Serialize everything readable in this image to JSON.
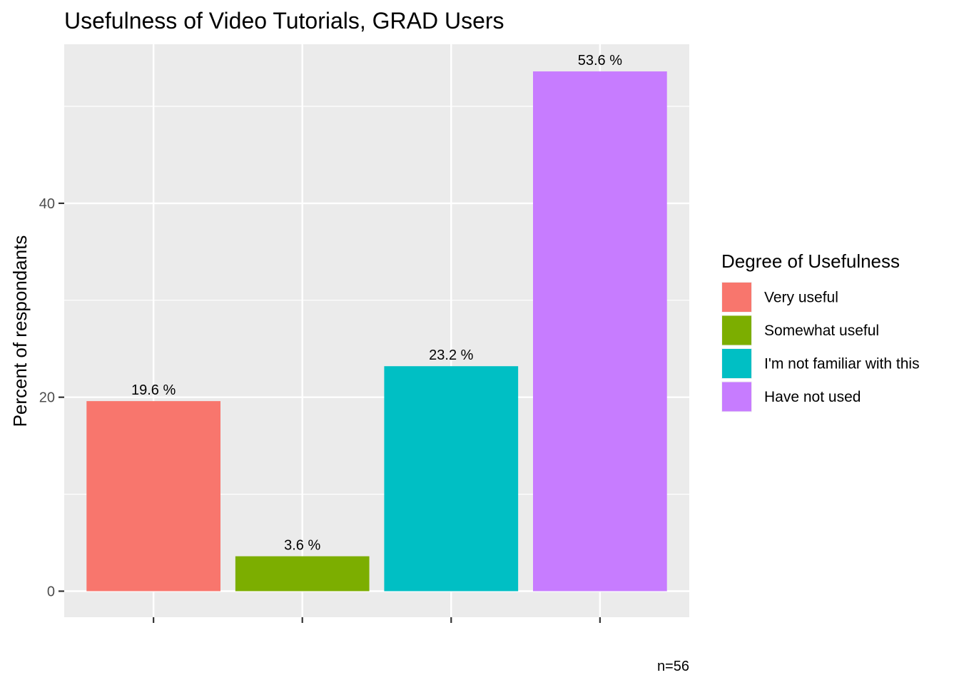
{
  "chart_data": {
    "type": "bar",
    "title": "Usefulness of Video Tutorials,  GRAD Users",
    "xlabel": "",
    "ylabel": "Percent of respondants",
    "ylim": [
      0,
      56.3
    ],
    "yticks": [
      0,
      20,
      40
    ],
    "categories": [
      "Very useful",
      "Somewhat useful",
      "I'm not familiar with this",
      "Have not used"
    ],
    "values": [
      19.6,
      3.6,
      23.2,
      53.6
    ],
    "value_labels": [
      "19.6 %",
      "3.6 %",
      "23.2 %",
      "53.6 %"
    ],
    "colors": [
      "#F8766D",
      "#7CAE00",
      "#00BFC4",
      "#C77CFF"
    ],
    "legend": {
      "title": "Degree of Usefulness",
      "position": "right",
      "entries": [
        "Very useful",
        "Somewhat useful",
        "I'm not familiar with this",
        "Have not used"
      ]
    },
    "caption": "n=56",
    "grid": true,
    "panel_background": "#EBEBEB"
  }
}
